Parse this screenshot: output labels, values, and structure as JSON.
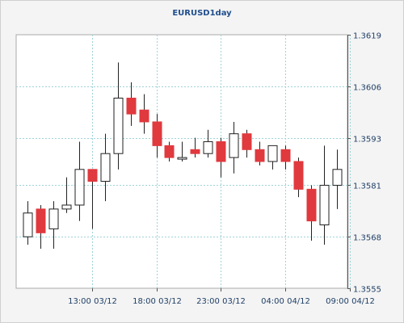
{
  "chart_data": {
    "type": "candlestick",
    "title": "EURUSD1day",
    "ylim": [
      1.3555,
      1.3619
    ],
    "yticks": [
      "1.3555",
      "1.3568",
      "1.3581",
      "1.3593",
      "1.3606",
      "1.3619"
    ],
    "xticks": [
      "13:00 03/12",
      "18:00 03/12",
      "23:00 03/12",
      "04:00 04/12",
      "09:00 04/12"
    ],
    "grid": true,
    "up_color": "#ffffff",
    "down_color": "#e0393e",
    "grid_color": "#9fd3d8",
    "candles": [
      {
        "open": 1.3568,
        "high": 1.3577,
        "low": 1.3566,
        "close": 1.3574
      },
      {
        "open": 1.3575,
        "high": 1.3576,
        "low": 1.3565,
        "close": 1.3569
      },
      {
        "open": 1.357,
        "high": 1.3577,
        "low": 1.3565,
        "close": 1.3575
      },
      {
        "open": 1.3575,
        "high": 1.3583,
        "low": 1.3574,
        "close": 1.3576
      },
      {
        "open": 1.3576,
        "high": 1.3592,
        "low": 1.3572,
        "close": 1.3585
      },
      {
        "open": 1.3585,
        "high": 1.3585,
        "low": 1.357,
        "close": 1.3582
      },
      {
        "open": 1.3582,
        "high": 1.3594,
        "low": 1.3577,
        "close": 1.3589
      },
      {
        "open": 1.3589,
        "high": 1.3612,
        "low": 1.3585,
        "close": 1.3603
      },
      {
        "open": 1.3603,
        "high": 1.3607,
        "low": 1.3596,
        "close": 1.3599
      },
      {
        "open": 1.36,
        "high": 1.3604,
        "low": 1.3594,
        "close": 1.3597
      },
      {
        "open": 1.3597,
        "high": 1.3599,
        "low": 1.3588,
        "close": 1.3591
      },
      {
        "open": 1.3591,
        "high": 1.3592,
        "low": 1.3587,
        "close": 1.3588
      },
      {
        "open": 1.3588,
        "high": 1.3592,
        "low": 1.3587,
        "close": 1.3588
      },
      {
        "open": 1.359,
        "high": 1.3593,
        "low": 1.3588,
        "close": 1.3589
      },
      {
        "open": 1.3589,
        "high": 1.3595,
        "low": 1.3588,
        "close": 1.3592
      },
      {
        "open": 1.3592,
        "high": 1.3593,
        "low": 1.3583,
        "close": 1.3587
      },
      {
        "open": 1.3588,
        "high": 1.3597,
        "low": 1.3584,
        "close": 1.3594
      },
      {
        "open": 1.3594,
        "high": 1.3595,
        "low": 1.3588,
        "close": 1.359
      },
      {
        "open": 1.359,
        "high": 1.3592,
        "low": 1.3586,
        "close": 1.3587
      },
      {
        "open": 1.3587,
        "high": 1.3591,
        "low": 1.3585,
        "close": 1.3591
      },
      {
        "open": 1.359,
        "high": 1.3591,
        "low": 1.3585,
        "close": 1.3587
      },
      {
        "open": 1.3587,
        "high": 1.3588,
        "low": 1.3578,
        "close": 1.358
      },
      {
        "open": 1.358,
        "high": 1.3581,
        "low": 1.3567,
        "close": 1.3572
      },
      {
        "open": 1.3571,
        "high": 1.3591,
        "low": 1.3566,
        "close": 1.3581
      },
      {
        "open": 1.3581,
        "high": 1.359,
        "low": 1.3575,
        "close": 1.3585
      }
    ]
  }
}
